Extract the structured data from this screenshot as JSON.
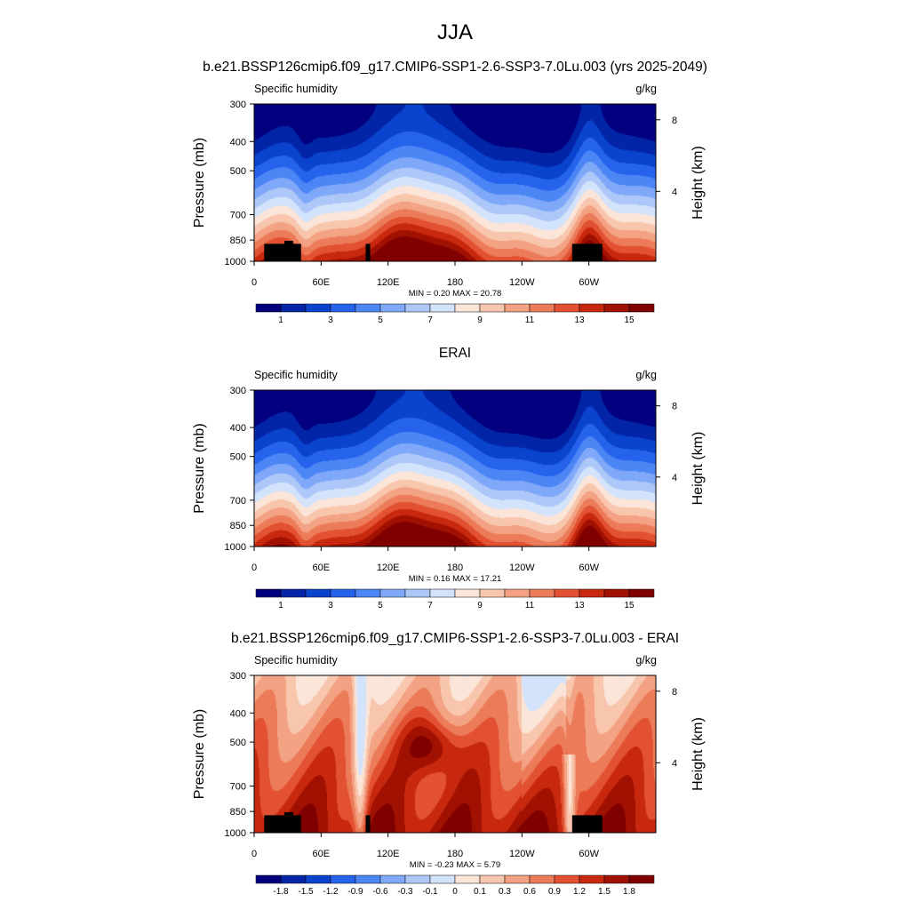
{
  "figure": {
    "season": "JJA"
  },
  "colors": {
    "abs_scale": [
      "#03007f",
      "#0225a8",
      "#0a43cd",
      "#2563ec",
      "#4c86f5",
      "#7fa8f8",
      "#adc7f8",
      "#d3e3fb",
      "#fbe5d8",
      "#f8c6ad",
      "#f3a283",
      "#ec7b5a",
      "#e25232",
      "#c8290e",
      "#a11102",
      "#800000"
    ],
    "diff_scale": [
      "#03007f",
      "#0225a8",
      "#0a43cd",
      "#2563ec",
      "#4c86f5",
      "#7fa8f8",
      "#adc7f8",
      "#d3e3fb",
      "#fbe5d8",
      "#f8c6ad",
      "#f3a283",
      "#ec7b5a",
      "#e25232",
      "#c8290e",
      "#a11102",
      "#800000"
    ],
    "terrain": "#000000"
  },
  "chart_data": [
    {
      "type": "heatmap",
      "title": "b.e21.BSSP126cmip6.f09_g17.CMIP6-SSP1-2.6-SSP3-7.0Lu.003 (yrs 2025-2049)",
      "left_label": "Specific humidity",
      "right_label": "g/kg",
      "ylabel": "Pressure (mb)",
      "ylabel_right": "Height (km)",
      "xticks": [
        "0",
        "60E",
        "120E",
        "180",
        "120W",
        "60W"
      ],
      "xtick_lon": [
        0,
        60,
        120,
        180,
        240,
        300
      ],
      "xlim": [
        0,
        360
      ],
      "yticks": [
        "300",
        "400",
        "500",
        "700",
        "850",
        "1000"
      ],
      "ytick_p": [
        300,
        400,
        500,
        700,
        850,
        1000
      ],
      "ylim": [
        1000,
        300
      ],
      "yscale": "log",
      "height_ticks": [
        "8",
        "4"
      ],
      "height_km": [
        8,
        4
      ],
      "stats": "MIN =   0.20  MAX =  20.78",
      "colorbar_labels": [
        "1",
        "3",
        "5",
        "7",
        "9",
        "11",
        "13",
        "15"
      ],
      "kind": "abs",
      "show_terrain": true
    },
    {
      "type": "heatmap",
      "title": "ERAI",
      "left_label": "Specific humidity",
      "right_label": "g/kg",
      "ylabel": "Pressure (mb)",
      "ylabel_right": "Height (km)",
      "xticks": [
        "0",
        "60E",
        "120E",
        "180",
        "120W",
        "60W"
      ],
      "xtick_lon": [
        0,
        60,
        120,
        180,
        240,
        300
      ],
      "xlim": [
        0,
        360
      ],
      "yticks": [
        "300",
        "400",
        "500",
        "700",
        "850",
        "1000"
      ],
      "ytick_p": [
        300,
        400,
        500,
        700,
        850,
        1000
      ],
      "ylim": [
        1000,
        300
      ],
      "yscale": "log",
      "height_ticks": [
        "8",
        "4"
      ],
      "height_km": [
        8,
        4
      ],
      "stats": "MIN =   0.16  MAX =  17.21",
      "colorbar_labels": [
        "1",
        "3",
        "5",
        "7",
        "9",
        "11",
        "13",
        "15"
      ],
      "kind": "abs",
      "show_terrain": false
    },
    {
      "type": "heatmap",
      "title": "b.e21.BSSP126cmip6.f09_g17.CMIP6-SSP1-2.6-SSP3-7.0Lu.003 - ERAI",
      "left_label": "Specific humidity",
      "right_label": "g/kg",
      "ylabel": "Pressure (mb)",
      "ylabel_right": "Height (km)",
      "xticks": [
        "0",
        "60E",
        "120E",
        "180",
        "120W",
        "60W"
      ],
      "xtick_lon": [
        0,
        60,
        120,
        180,
        240,
        300
      ],
      "xlim": [
        0,
        360
      ],
      "yticks": [
        "300",
        "400",
        "500",
        "700",
        "850",
        "1000"
      ],
      "ytick_p": [
        300,
        400,
        500,
        700,
        850,
        1000
      ],
      "ylim": [
        1000,
        300
      ],
      "yscale": "log",
      "height_ticks": [
        "8",
        "4"
      ],
      "height_km": [
        8,
        4
      ],
      "stats": "MIN =  -0.23  MAX =   5.79",
      "colorbar_labels": [
        "-1.8",
        "-1.5",
        "-1.2",
        "-0.9",
        "-0.6",
        "-0.3",
        "-0.1",
        "0",
        "0.1",
        "0.3",
        "0.6",
        "0.9",
        "1.2",
        "1.5",
        "1.8"
      ],
      "kind": "diff",
      "show_terrain": true
    }
  ]
}
